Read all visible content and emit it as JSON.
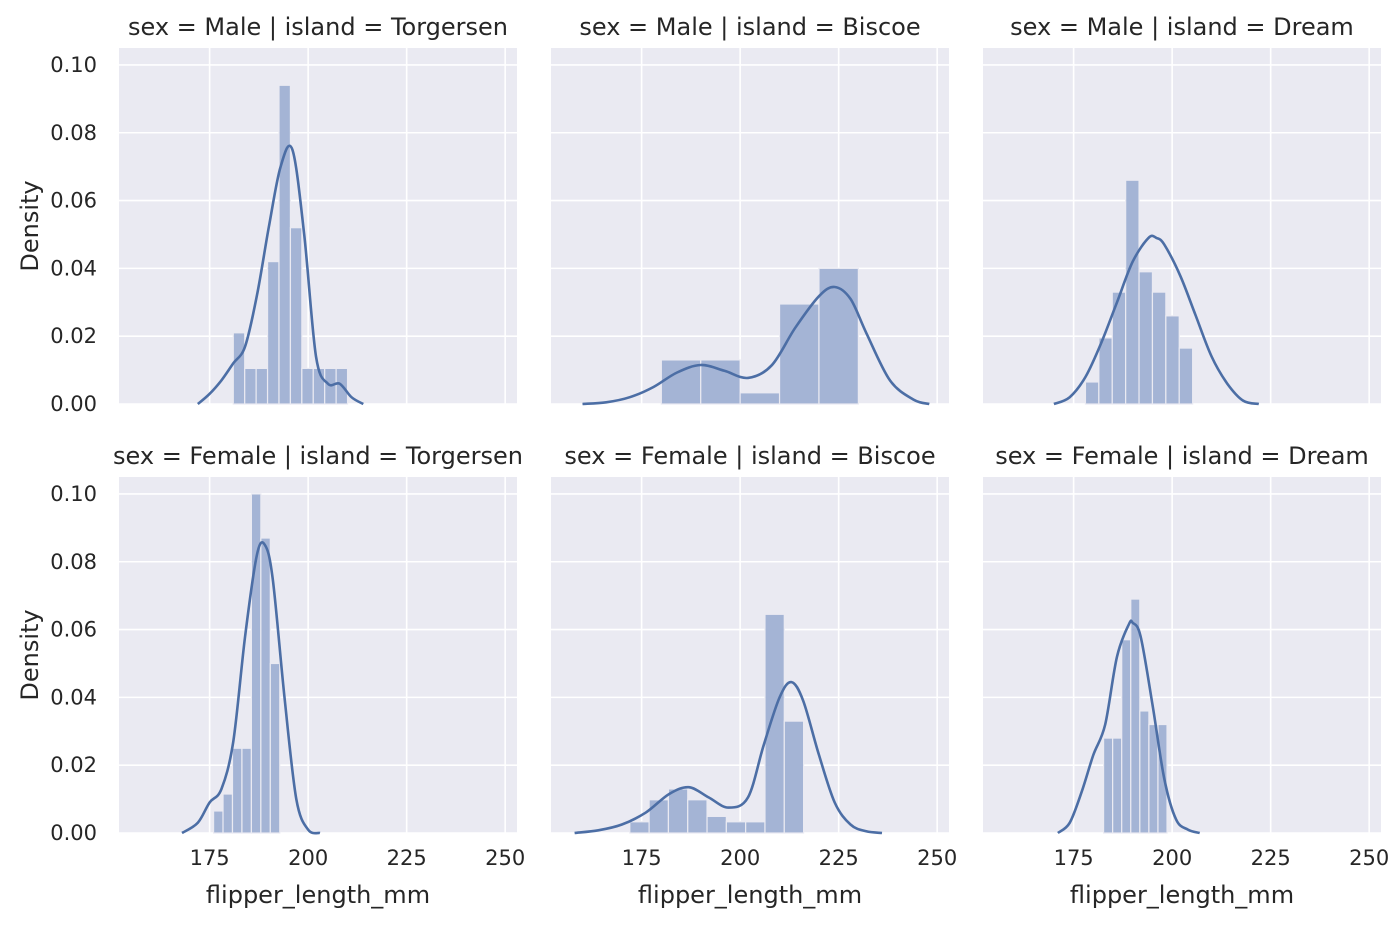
{
  "figure": {
    "background": "#ffffff",
    "facet_background": "#eaeaf2",
    "grid_color": "#ffffff",
    "bar_color": "#a4b4d5",
    "line_color": "#4c6ea5"
  },
  "x_ticks": [
    175,
    200,
    225,
    250
  ],
  "y_ticks": [
    "0.00",
    "0.02",
    "0.04",
    "0.06",
    "0.08",
    "0.10"
  ],
  "xlabel": "flipper_length_mm",
  "ylabel": "Density",
  "chart_data": [
    {
      "type": "bar",
      "title": "sex = Male | island = Torgersen",
      "xlabel": "",
      "ylabel": "Density",
      "xlim": [
        152,
        253
      ],
      "ylim": [
        0,
        0.105
      ],
      "grid": true,
      "histogram": {
        "bin_edges": [
          181,
          183.9,
          186.8,
          189.7,
          192.6,
          195.5,
          198.4,
          201.3,
          204.2,
          207.1,
          210
        ],
        "density": [
          0.021,
          0.0105,
          0.0105,
          0.042,
          0.094,
          0.052,
          0.0105,
          0.0105,
          0.0105,
          0.0105
        ]
      },
      "kde": {
        "x": [
          172,
          175,
          178,
          181,
          184,
          187,
          190,
          193,
          196,
          199,
          202,
          205,
          208,
          211,
          214
        ],
        "y": [
          0.0,
          0.003,
          0.007,
          0.012,
          0.017,
          0.032,
          0.052,
          0.07,
          0.075,
          0.05,
          0.014,
          0.006,
          0.006,
          0.002,
          0.0
        ]
      }
    },
    {
      "type": "bar",
      "title": "sex = Male | island = Biscoe",
      "xlabel": "",
      "ylabel": "",
      "xlim": [
        152,
        253
      ],
      "ylim": [
        0,
        0.105
      ],
      "grid": true,
      "histogram": {
        "bin_edges": [
          180,
          190,
          200,
          210,
          220,
          230
        ],
        "density": [
          0.013,
          0.013,
          0.0033,
          0.0295,
          0.04
        ]
      },
      "kde": {
        "x": [
          160,
          166,
          172,
          178,
          184,
          190,
          196,
          202,
          208,
          214,
          220,
          224,
          228,
          232,
          238,
          244,
          248
        ],
        "y": [
          0.0,
          0.0005,
          0.002,
          0.005,
          0.0093,
          0.0115,
          0.0098,
          0.0077,
          0.0114,
          0.0225,
          0.0318,
          0.0345,
          0.031,
          0.021,
          0.007,
          0.0013,
          0.0
        ]
      }
    },
    {
      "type": "bar",
      "title": "sex = Male | island = Dream",
      "xlabel": "",
      "ylabel": "",
      "xlim": [
        152,
        253
      ],
      "ylim": [
        0,
        0.105
      ],
      "grid": true,
      "histogram": {
        "bin_edges": [
          178,
          181.4,
          184.8,
          188.2,
          191.6,
          195,
          198.4,
          201.8,
          205.2,
          208.6,
          212
        ],
        "density": [
          0.0065,
          0.0195,
          0.033,
          0.066,
          0.039,
          0.033,
          0.026,
          0.0165,
          0.0,
          0.0
        ]
      },
      "kde": {
        "x": [
          170,
          174,
          178,
          182,
          186,
          190,
          194,
          196,
          198,
          202,
          206,
          210,
          214,
          218,
          222
        ],
        "y": [
          0.0,
          0.002,
          0.008,
          0.018,
          0.03,
          0.042,
          0.049,
          0.049,
          0.047,
          0.038,
          0.026,
          0.014,
          0.006,
          0.001,
          0.0
        ]
      }
    },
    {
      "type": "bar",
      "title": "sex = Female | island = Torgersen",
      "xlabel": "flipper_length_mm",
      "ylabel": "Density",
      "xlim": [
        152,
        253
      ],
      "ylim": [
        0,
        0.105
      ],
      "grid": true,
      "histogram": {
        "bin_edges": [
          176,
          178.4,
          180.8,
          183.2,
          185.6,
          188,
          190.4,
          192.8,
          195.2
        ],
        "density": [
          0.0065,
          0.0115,
          0.025,
          0.025,
          0.1,
          0.087,
          0.05,
          0.0
        ]
      },
      "kde": {
        "x": [
          168,
          172,
          175,
          178,
          181,
          184,
          187,
          189,
          191,
          194,
          197,
          200,
          203
        ],
        "y": [
          0.0,
          0.003,
          0.009,
          0.013,
          0.027,
          0.058,
          0.082,
          0.085,
          0.075,
          0.04,
          0.01,
          0.001,
          0.0
        ]
      }
    },
    {
      "type": "bar",
      "title": "sex = Female | island = Biscoe",
      "xlabel": "flipper_length_mm",
      "ylabel": "",
      "xlim": [
        152,
        253
      ],
      "ylim": [
        0,
        0.105
      ],
      "grid": true,
      "histogram": {
        "bin_edges": [
          172,
          176.9,
          181.8,
          186.7,
          191.6,
          196.5,
          201.4,
          206.3,
          211.2,
          216.1,
          221
        ],
        "density": [
          0.0033,
          0.0098,
          0.013,
          0.0098,
          0.0049,
          0.0033,
          0.0033,
          0.0645,
          0.033,
          0.0
        ]
      },
      "kde": {
        "x": [
          158,
          164,
          170,
          176,
          182,
          187,
          192,
          197,
          202,
          206,
          210,
          213,
          216,
          220,
          224,
          228,
          232,
          236
        ],
        "y": [
          0.0,
          0.0008,
          0.0025,
          0.006,
          0.0115,
          0.0135,
          0.0105,
          0.0075,
          0.0105,
          0.026,
          0.04,
          0.0445,
          0.039,
          0.023,
          0.009,
          0.0025,
          0.0005,
          0.0
        ]
      }
    },
    {
      "type": "bar",
      "title": "sex = Female | island = Dream",
      "xlabel": "flipper_length_mm",
      "ylabel": "",
      "xlim": [
        152,
        253
      ],
      "ylim": [
        0,
        0.105
      ],
      "grid": true,
      "histogram": {
        "bin_edges": [
          178,
          180.3,
          182.6,
          184.9,
          187.2,
          189.5,
          191.8,
          194.1,
          196.4,
          198.7,
          201
        ],
        "density": [
          0.0,
          0.0,
          0.028,
          0.028,
          0.057,
          0.069,
          0.036,
          0.032,
          0.032,
          0.0
        ]
      },
      "kde": {
        "x": [
          171,
          174,
          177,
          180,
          183,
          186,
          189,
          190,
          192,
          195,
          198,
          201,
          204,
          207
        ],
        "y": [
          0.0,
          0.003,
          0.012,
          0.023,
          0.032,
          0.052,
          0.0615,
          0.062,
          0.058,
          0.038,
          0.016,
          0.004,
          0.001,
          0.0
        ]
      }
    }
  ]
}
